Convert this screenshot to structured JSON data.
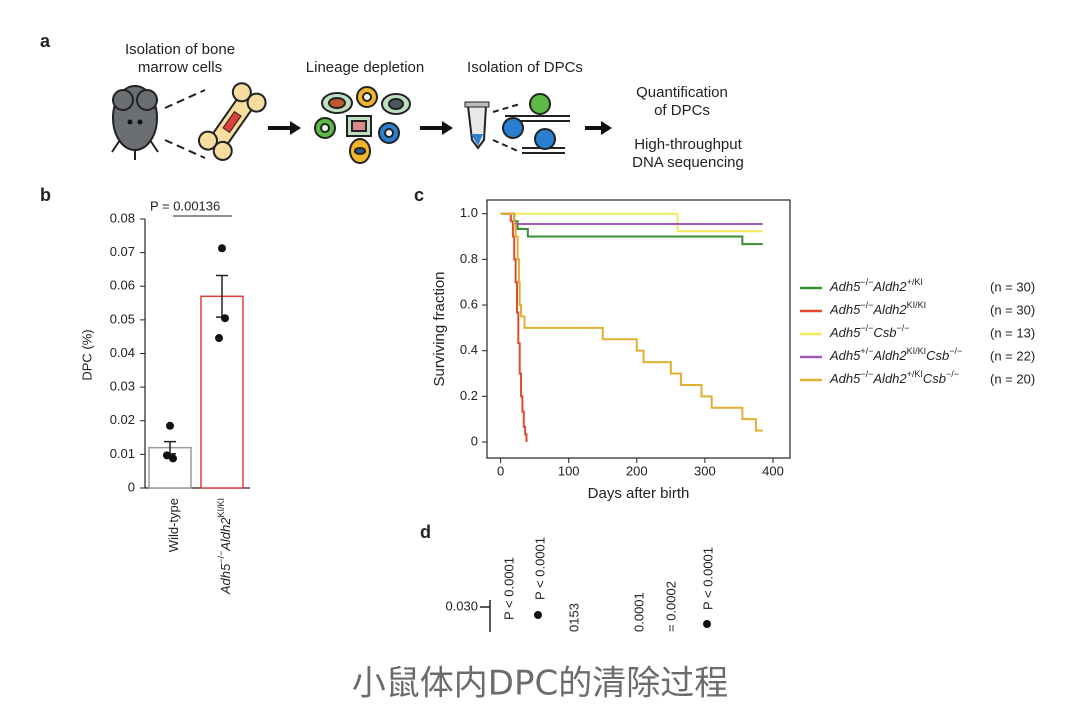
{
  "panel_a": {
    "label": "a",
    "steps": [
      [
        "Isolation of bone",
        "marrow cells"
      ],
      [
        "Lineage depletion"
      ],
      [
        "Isolation of DPCs"
      ],
      [
        "Quantification",
        "of DPCs"
      ],
      [
        "High-throughput",
        "DNA sequencing"
      ]
    ]
  },
  "chart_data": [
    {
      "type": "bar",
      "panel_label": "b",
      "categories": [
        [
          [
            "Wild-type",
            "n"
          ]
        ],
        [
          [
            "Adh5",
            "i"
          ],
          [
            "−/−",
            "s"
          ],
          [
            "Aldh2",
            "i"
          ],
          [
            "KI/KI",
            "s"
          ]
        ]
      ],
      "values": [
        0.012,
        0.057
      ],
      "errors": [
        0.0018,
        0.0062
      ],
      "points": [
        [
          0.0185,
          0.0097,
          0.0088
        ],
        [
          0.0713,
          0.0446,
          0.0505
        ]
      ],
      "colors": [
        "#9a9a9a",
        "#d9413a"
      ],
      "ylabel": "DPC (%)",
      "ylim": [
        0,
        0.08
      ],
      "yticks": [
        0,
        0.01,
        0.02,
        0.03,
        0.04,
        0.05,
        0.06,
        0.07,
        0.08
      ],
      "annotation": "P = 0.00136"
    },
    {
      "type": "line",
      "panel_label": "c",
      "drawstyle": "steps-post",
      "xlabel": "Days after birth",
      "ylabel": "Surviving fraction",
      "xlim": [
        -20,
        425
      ],
      "ylim": [
        -0.07,
        1.06
      ],
      "xticks": [
        0,
        100,
        200,
        300,
        400
      ],
      "yticks": [
        0,
        0.2,
        0.4,
        0.6,
        0.8,
        {
          "value": 1,
          "label": "1.0"
        }
      ],
      "series": [
        {
          "name": [
            [
              "Adh5",
              "i"
            ],
            [
              "−/−",
              "s"
            ],
            [
              "Aldh2",
              "i"
            ],
            [
              "+/KI",
              "s"
            ]
          ],
          "n_label": "(n = 30)",
          "color": "#3a8f35",
          "x": [
            0,
            20,
            25,
            40,
            355,
            385
          ],
          "values": [
            1,
            0.967,
            0.933,
            0.9,
            0.867,
            0.867
          ]
        },
        {
          "name": [
            [
              "Adh5",
              "i"
            ],
            [
              "−/−",
              "s"
            ],
            [
              "Aldh2",
              "i"
            ],
            [
              "KI/KI",
              "s"
            ]
          ],
          "n_label": "(n = 30)",
          "color": "#e04a30",
          "x": [
            0,
            15,
            18,
            20,
            22,
            24,
            26,
            28,
            30,
            32,
            34,
            36,
            38
          ],
          "values": [
            1,
            0.967,
            0.9,
            0.8,
            0.7,
            0.567,
            0.433,
            0.3,
            0.2,
            0.133,
            0.067,
            0.033,
            0
          ]
        },
        {
          "name": [
            [
              "Adh5",
              "i"
            ],
            [
              "−/−",
              "s"
            ],
            [
              "Csb",
              "i"
            ],
            [
              "−/−",
              "s"
            ]
          ],
          "n_label": "(n = 13)",
          "color": "#f2ec5e",
          "x": [
            0,
            260,
            385
          ],
          "values": [
            1,
            0.923,
            0.923
          ]
        },
        {
          "name": [
            [
              "Adh5",
              "i"
            ],
            [
              "+/−",
              "s"
            ],
            [
              "Aldh2",
              "i"
            ],
            [
              "KI/KI",
              "s"
            ],
            [
              "Csb",
              "i"
            ],
            [
              "−/−",
              "s"
            ]
          ],
          "n_label": "(n = 22)",
          "color": "#a05ab8",
          "x": [
            0,
            20,
            385
          ],
          "values": [
            1,
            0.955,
            0.955
          ]
        },
        {
          "name": [
            [
              "Adh5",
              "i"
            ],
            [
              "−/−",
              "s"
            ],
            [
              "Aldh2",
              "i"
            ],
            [
              "+/KI",
              "s"
            ],
            [
              "Csb",
              "i"
            ],
            [
              "−/−",
              "s"
            ]
          ],
          "n_label": "(n = 20)",
          "color": "#e0b030",
          "x": [
            0,
            20,
            22,
            25,
            27,
            28,
            30,
            35,
            150,
            200,
            210,
            250,
            265,
            295,
            310,
            355,
            375,
            385
          ],
          "values": [
            1,
            0.95,
            0.9,
            0.8,
            0.7,
            0.6,
            0.55,
            0.5,
            0.45,
            0.4,
            0.35,
            0.3,
            0.25,
            0.2,
            0.15,
            0.1,
            0.05,
            0.05
          ]
        }
      ]
    }
  ],
  "panel_d": {
    "label": "d",
    "ytick": "0.030",
    "annotations": [
      "P < 0.0001",
      "P < 0.0001",
      "0153",
      "0.0001",
      "= 0.0002",
      "P < 0.0001"
    ]
  },
  "caption": "小鼠体内DPC的清除过程"
}
